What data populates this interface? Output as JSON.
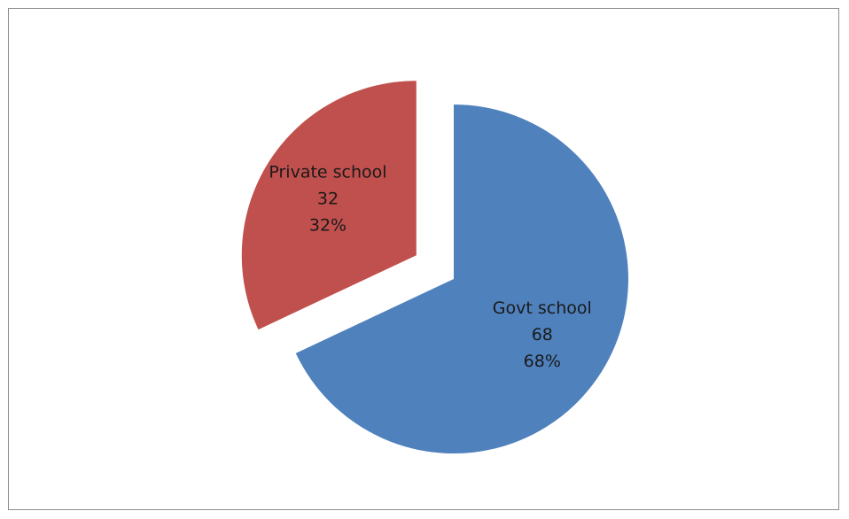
{
  "chart_data": {
    "type": "pie",
    "title": "",
    "slices": [
      {
        "name": "Govt school",
        "value": 68,
        "percent": "68%",
        "color": "#4f81bd",
        "exploded": false
      },
      {
        "name": "Private school",
        "value": 32,
        "percent": "32%",
        "color": "#c0504d",
        "exploded": true
      }
    ],
    "start_angle_deg": 0,
    "direction": "clockwise",
    "data_labels": "inside: category name, value, percentage",
    "legend": "none"
  }
}
